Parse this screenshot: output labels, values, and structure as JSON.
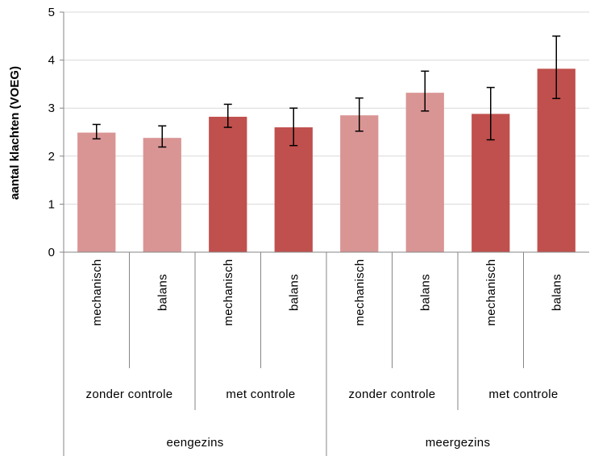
{
  "chart_data": {
    "type": "bar",
    "ylabel": "aantal klachten (VOEG)",
    "ylim": [
      0,
      5
    ],
    "yticks": [
      0,
      1,
      2,
      3,
      4,
      5
    ],
    "grid": true,
    "categories": [
      "mechanisch",
      "balans",
      "mechanisch",
      "balans",
      "mechanisch",
      "balans",
      "mechanisch",
      "balans"
    ],
    "group_labels_level2": [
      "zonder controle",
      "met controle",
      "zonder controle",
      "met controle"
    ],
    "group_labels_level3": [
      "eengezins",
      "meergezins"
    ],
    "values": [
      2.49,
      2.38,
      2.82,
      2.6,
      2.85,
      3.32,
      2.88,
      3.82
    ],
    "error_low": [
      2.36,
      2.19,
      2.6,
      2.22,
      2.52,
      2.94,
      2.34,
      3.2
    ],
    "error_high": [
      2.66,
      2.63,
      3.08,
      3.0,
      3.21,
      3.77,
      3.43,
      4.5
    ],
    "colors": [
      "#d99594",
      "#d99594",
      "#c0504d",
      "#c0504d",
      "#d99594",
      "#d99594",
      "#c0504d",
      "#c0504d"
    ]
  }
}
